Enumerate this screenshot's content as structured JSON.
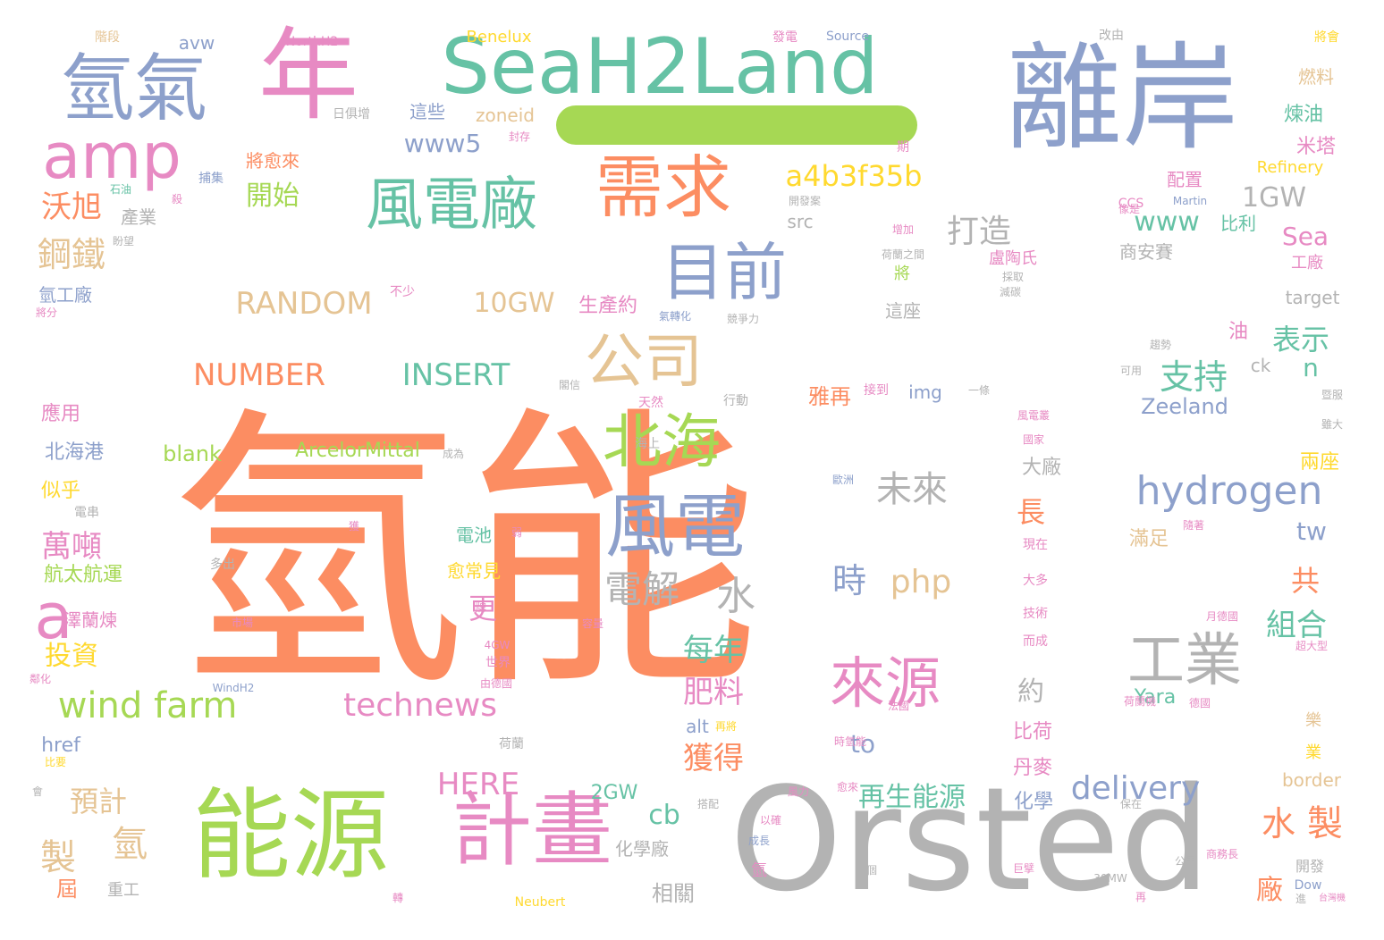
{
  "colors": {
    "orange": "#fc8d62",
    "green": "#66c2a5",
    "blue": "#8da0cb",
    "pink": "#e78ac3",
    "lime": "#a6d854",
    "yellow": "#ffd92f",
    "tan": "#e5c494",
    "gray": "#b3b3b3"
  },
  "dash_color": "#a6d854",
  "words": [
    {
      "t": "氫能",
      "c": "orange",
      "s": 330
    },
    {
      "t": "離岸",
      "c": "blue",
      "s": 130
    },
    {
      "t": "SeaH2Land",
      "c": "green",
      "s": 86
    },
    {
      "t": "年",
      "c": "pink",
      "s": 112
    },
    {
      "t": "氫氣",
      "c": "blue",
      "s": 82
    },
    {
      "t": "amp",
      "c": "pink",
      "s": 70
    },
    {
      "t": "Orsted",
      "c": "gray",
      "s": 160
    },
    {
      "t": "能源",
      "c": "lime",
      "s": 110
    },
    {
      "t": "計畫",
      "c": "pink",
      "s": 90
    },
    {
      "t": "需求",
      "c": "orange",
      "s": 76
    },
    {
      "t": "風電廠",
      "c": "green",
      "s": 64
    },
    {
      "t": "目前",
      "c": "blue",
      "s": 70
    },
    {
      "t": "公司",
      "c": "tan",
      "s": 66
    },
    {
      "t": "北海",
      "c": "lime",
      "s": 66
    },
    {
      "t": "風電",
      "c": "blue",
      "s": 78
    },
    {
      "t": "來源",
      "c": "pink",
      "s": 62
    },
    {
      "t": "工業",
      "c": "gray",
      "s": 64
    },
    {
      "t": "hydrogen",
      "c": "blue",
      "s": 44
    },
    {
      "t": "a",
      "c": "pink",
      "s": 70
    },
    {
      "t": "wind farm",
      "c": "lime",
      "s": 40
    },
    {
      "t": "technews",
      "c": "pink",
      "s": 36
    },
    {
      "t": "NUMBER",
      "c": "orange",
      "s": 34
    },
    {
      "t": "INSERT",
      "c": "green",
      "s": 34
    },
    {
      "t": "RANDOM",
      "c": "tan",
      "s": 34
    },
    {
      "t": "10GW",
      "c": "tan",
      "s": 30
    },
    {
      "t": "a4b3f35b",
      "c": "yellow",
      "s": 32
    },
    {
      "t": "1GW",
      "c": "gray",
      "s": 30
    },
    {
      "t": "www",
      "c": "green",
      "s": 30
    },
    {
      "t": "www5",
      "c": "blue",
      "s": 28
    },
    {
      "t": "delivery",
      "c": "blue",
      "s": 36
    },
    {
      "t": "HERE",
      "c": "pink",
      "s": 34
    },
    {
      "t": "php",
      "c": "tan",
      "s": 36
    },
    {
      "t": "電解",
      "c": "gray",
      "s": 42
    },
    {
      "t": "水",
      "c": "gray",
      "s": 44
    },
    {
      "t": "未來",
      "c": "gray",
      "s": 40
    },
    {
      "t": "時",
      "c": "blue",
      "s": 38
    },
    {
      "t": "支持",
      "c": "green",
      "s": 38
    },
    {
      "t": "打造",
      "c": "gray",
      "s": 36
    },
    {
      "t": "開始",
      "c": "lime",
      "s": 30
    },
    {
      "t": "沃旭",
      "c": "orange",
      "s": 34
    },
    {
      "t": "鋼鐵",
      "c": "tan",
      "s": 38
    },
    {
      "t": "萬噸",
      "c": "pink",
      "s": 34
    },
    {
      "t": "投資",
      "c": "yellow",
      "s": 30
    },
    {
      "t": "預計",
      "c": "tan",
      "s": 32
    },
    {
      "t": "製",
      "c": "tan",
      "s": 40
    },
    {
      "t": "氫",
      "c": "tan",
      "s": 40
    },
    {
      "t": "水",
      "c": "orange",
      "s": 38
    },
    {
      "t": "製",
      "c": "orange",
      "s": 40
    },
    {
      "t": "再生能源",
      "c": "green",
      "s": 30
    },
    {
      "t": "每年",
      "c": "green",
      "s": 34
    },
    {
      "t": "肥料",
      "c": "pink",
      "s": 34
    },
    {
      "t": "獲得",
      "c": "orange",
      "s": 34
    },
    {
      "t": "組合",
      "c": "green",
      "s": 34
    },
    {
      "t": "表示",
      "c": "green",
      "s": 32
    },
    {
      "t": "Sea",
      "c": "pink",
      "s": 28
    },
    {
      "t": "tw",
      "c": "blue",
      "s": 28
    },
    {
      "t": "n",
      "c": "green",
      "s": 28
    },
    {
      "t": "約",
      "c": "gray",
      "s": 30
    },
    {
      "t": "長",
      "c": "orange",
      "s": 32
    },
    {
      "t": "更",
      "c": "pink",
      "s": 32
    },
    {
      "t": "共",
      "c": "orange",
      "s": 32
    },
    {
      "t": "廠",
      "c": "orange",
      "s": 30
    },
    {
      "t": "cb",
      "c": "green",
      "s": 30
    },
    {
      "t": "to",
      "c": "blue",
      "s": 28
    },
    {
      "t": "Zeeland",
      "c": "blue",
      "s": 24
    },
    {
      "t": "ArcelorMittal",
      "c": "lime",
      "s": 22
    },
    {
      "t": "blank",
      "c": "lime",
      "s": 24
    },
    {
      "t": "zoneid",
      "c": "tan",
      "s": 20
    },
    {
      "t": "img",
      "c": "blue",
      "s": 20
    },
    {
      "t": "src",
      "c": "gray",
      "s": 20
    },
    {
      "t": "target",
      "c": "gray",
      "s": 20
    },
    {
      "t": "border",
      "c": "tan",
      "s": 20
    },
    {
      "t": "Refinery",
      "c": "yellow",
      "s": 18
    },
    {
      "t": "alt",
      "c": "blue",
      "s": 20
    },
    {
      "t": "href",
      "c": "blue",
      "s": 22
    },
    {
      "t": "ck",
      "c": "gray",
      "s": 20
    },
    {
      "t": "Yara",
      "c": "green",
      "s": 22
    },
    {
      "t": "2GW",
      "c": "green",
      "s": 22
    },
    {
      "t": "avw",
      "c": "blue",
      "s": 20
    },
    {
      "t": "Benelux",
      "c": "yellow",
      "s": 18
    },
    {
      "t": "NorthH2",
      "c": "pink",
      "s": 14
    },
    {
      "t": "Source",
      "c": "blue",
      "s": 14
    },
    {
      "t": "Martin",
      "c": "blue",
      "s": 12
    },
    {
      "t": "CCS",
      "c": "pink",
      "s": 14
    },
    {
      "t": "Dow",
      "c": "blue",
      "s": 14
    },
    {
      "t": "Neubert",
      "c": "yellow",
      "s": 14
    },
    {
      "t": "30MW",
      "c": "gray",
      "s": 12
    },
    {
      "t": "4GW",
      "c": "pink",
      "s": 12
    },
    {
      "t": "WindH2",
      "c": "blue",
      "s": 12
    },
    {
      "t": "雅再",
      "c": "orange",
      "s": 24
    },
    {
      "t": "大廠",
      "c": "gray",
      "s": 22
    },
    {
      "t": "滿足",
      "c": "tan",
      "s": 22
    },
    {
      "t": "兩座",
      "c": "yellow",
      "s": 22
    },
    {
      "t": "比荷",
      "c": "pink",
      "s": 22
    },
    {
      "t": "丹麥",
      "c": "pink",
      "s": 22
    },
    {
      "t": "化學",
      "c": "blue",
      "s": 22
    },
    {
      "t": "相關",
      "c": "gray",
      "s": 24
    },
    {
      "t": "化學廠",
      "c": "gray",
      "s": 20
    },
    {
      "t": "北海港",
      "c": "blue",
      "s": 22
    },
    {
      "t": "應用",
      "c": "pink",
      "s": 22
    },
    {
      "t": "似乎",
      "c": "yellow",
      "s": 22
    },
    {
      "t": "航太航運",
      "c": "lime",
      "s": 22
    },
    {
      "t": "澤蘭煉",
      "c": "pink",
      "s": 20
    },
    {
      "t": "電池",
      "c": "green",
      "s": 20
    },
    {
      "t": "愈常見",
      "c": "yellow",
      "s": 20
    },
    {
      "t": "將愈來",
      "c": "orange",
      "s": 20
    },
    {
      "t": "生產約",
      "c": "pink",
      "s": 22
    },
    {
      "t": "這些",
      "c": "blue",
      "s": 20
    },
    {
      "t": "產業",
      "c": "gray",
      "s": 20
    },
    {
      "t": "配置",
      "c": "pink",
      "s": 20
    },
    {
      "t": "燃料",
      "c": "tan",
      "s": 20
    },
    {
      "t": "煉油",
      "c": "green",
      "s": 22
    },
    {
      "t": "米塔",
      "c": "pink",
      "s": 22
    },
    {
      "t": "商安賽",
      "c": "gray",
      "s": 20
    },
    {
      "t": "工廠",
      "c": "pink",
      "s": 18
    },
    {
      "t": "比利",
      "c": "green",
      "s": 20
    },
    {
      "t": "盧陶氏",
      "c": "pink",
      "s": 18
    },
    {
      "t": "這座",
      "c": "gray",
      "s": 20
    },
    {
      "t": "油",
      "c": "pink",
      "s": 22
    },
    {
      "t": "氫工廠",
      "c": "blue",
      "s": 20
    },
    {
      "t": "重工",
      "c": "gray",
      "s": 18
    },
    {
      "t": "屆",
      "c": "orange",
      "s": 24
    },
    {
      "t": "日俱增",
      "c": "gray",
      "s": 14
    },
    {
      "t": "技術",
      "c": "pink",
      "s": 14
    },
    {
      "t": "現在",
      "c": "pink",
      "s": 14
    },
    {
      "t": "大多",
      "c": "pink",
      "s": 14
    },
    {
      "t": "而成",
      "c": "pink",
      "s": 14
    },
    {
      "t": "開發",
      "c": "gray",
      "s": 16
    },
    {
      "t": "樂",
      "c": "tan",
      "s": 18
    },
    {
      "t": "業",
      "c": "yellow",
      "s": 18
    },
    {
      "t": "氫",
      "c": "pink",
      "s": 18
    },
    {
      "t": "將",
      "c": "lime",
      "s": 18
    },
    {
      "t": "歐洲",
      "c": "blue",
      "s": 12
    },
    {
      "t": "天然",
      "c": "pink",
      "s": 14
    },
    {
      "t": "行動",
      "c": "gray",
      "s": 14
    },
    {
      "t": "海上",
      "c": "gray",
      "s": 14
    },
    {
      "t": "世界",
      "c": "pink",
      "s": 14
    },
    {
      "t": "荷蘭",
      "c": "gray",
      "s": 14
    },
    {
      "t": "電串",
      "c": "gray",
      "s": 14
    },
    {
      "t": "多出",
      "c": "gray",
      "s": 14
    },
    {
      "t": "荷蘭之間",
      "c": "gray",
      "s": 12
    },
    {
      "t": "開發案",
      "c": "gray",
      "s": 12
    },
    {
      "t": "氣轉化",
      "c": "blue",
      "s": 12
    },
    {
      "t": "競爭力",
      "c": "gray",
      "s": 12
    },
    {
      "t": "採取",
      "c": "gray",
      "s": 12
    },
    {
      "t": "減碳",
      "c": "gray",
      "s": 12
    },
    {
      "t": "趨勢",
      "c": "gray",
      "s": 12
    },
    {
      "t": "可用",
      "c": "gray",
      "s": 12
    },
    {
      "t": "國家",
      "c": "pink",
      "s": 12
    },
    {
      "t": "風電叢",
      "c": "pink",
      "s": 12
    },
    {
      "t": "捕集",
      "c": "blue",
      "s": 14
    },
    {
      "t": "石油",
      "c": "green",
      "s": 12
    },
    {
      "t": "盼望",
      "c": "gray",
      "s": 12
    },
    {
      "t": "封存",
      "c": "pink",
      "s": 12
    },
    {
      "t": "階段",
      "c": "tan",
      "s": 14
    },
    {
      "t": "發電",
      "c": "pink",
      "s": 14
    },
    {
      "t": "改由",
      "c": "gray",
      "s": 14
    },
    {
      "t": "將會",
      "c": "yellow",
      "s": 14
    },
    {
      "t": "期",
      "c": "pink",
      "s": 14
    },
    {
      "t": "成長",
      "c": "blue",
      "s": 12
    },
    {
      "t": "以確",
      "c": "pink",
      "s": 12
    },
    {
      "t": "巨擘",
      "c": "pink",
      "s": 12
    },
    {
      "t": "公里",
      "c": "gray",
      "s": 12
    },
    {
      "t": "商務長",
      "c": "pink",
      "s": 12
    },
    {
      "t": "台灣機",
      "c": "pink",
      "s": 10
    },
    {
      "t": "保在",
      "c": "gray",
      "s": 12
    },
    {
      "t": "風力",
      "c": "pink",
      "s": 12
    },
    {
      "t": "愈來",
      "c": "pink",
      "s": 12
    },
    {
      "t": "時氫能",
      "c": "pink",
      "s": 12
    },
    {
      "t": "再將",
      "c": "yellow",
      "s": 12
    },
    {
      "t": "搭配",
      "c": "gray",
      "s": 12
    },
    {
      "t": "成為",
      "c": "gray",
      "s": 12
    },
    {
      "t": "一條",
      "c": "gray",
      "s": 12
    },
    {
      "t": "閣信",
      "c": "gray",
      "s": 12
    },
    {
      "t": "接到",
      "c": "pink",
      "s": 14
    },
    {
      "t": "不少",
      "c": "pink",
      "s": 14
    },
    {
      "t": "市場",
      "c": "pink",
      "s": 12
    },
    {
      "t": "月德國",
      "c": "pink",
      "s": 12
    },
    {
      "t": "超大型",
      "c": "pink",
      "s": 12
    },
    {
      "t": "雖大",
      "c": "gray",
      "s": 12
    },
    {
      "t": "暨服",
      "c": "gray",
      "s": 12
    },
    {
      "t": "像是",
      "c": "pink",
      "s": 12
    },
    {
      "t": "由德國",
      "c": "pink",
      "s": 12
    },
    {
      "t": "牌",
      "c": "pink",
      "s": 12
    },
    {
      "t": "殺",
      "c": "pink",
      "s": 12
    },
    {
      "t": "增加",
      "c": "pink",
      "s": 12
    },
    {
      "t": "法國",
      "c": "pink",
      "s": 12
    },
    {
      "t": "將分",
      "c": "pink",
      "s": 12
    },
    {
      "t": "轉",
      "c": "pink",
      "s": 12
    },
    {
      "t": "會",
      "c": "gray",
      "s": 12
    },
    {
      "t": "比要",
      "c": "yellow",
      "s": 12
    },
    {
      "t": "鄰化",
      "c": "pink",
      "s": 12
    },
    {
      "t": "一個",
      "c": "gray",
      "s": 12
    },
    {
      "t": "再",
      "c": "pink",
      "s": 12
    },
    {
      "t": "隨著",
      "c": "pink",
      "s": 12
    },
    {
      "t": "德國",
      "c": "pink",
      "s": 12
    },
    {
      "t": "容量",
      "c": "pink",
      "s": 12
    },
    {
      "t": "弱",
      "c": "pink",
      "s": 12
    },
    {
      "t": "獲",
      "c": "pink",
      "s": 12
    },
    {
      "t": "荷蘭機",
      "c": "pink",
      "s": 12
    },
    {
      "t": "進",
      "c": "gray",
      "s": 12
    }
  ]
}
